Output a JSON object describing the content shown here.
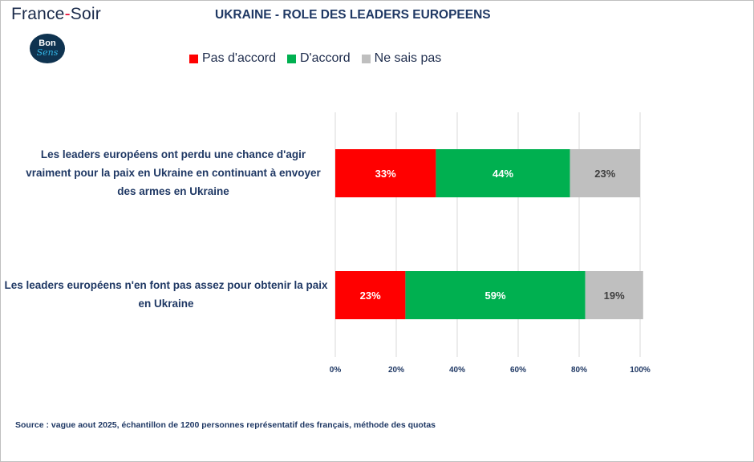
{
  "brand": {
    "left": "France",
    "dash": "-",
    "right": "Soir"
  },
  "logo": {
    "line1": "Bon",
    "line2": "Sens"
  },
  "colors": {
    "pas_daccord": "#ff0000",
    "daccord": "#00b050",
    "ne_sais_pas": "#bfbfbf",
    "text": "#1f3864"
  },
  "chart_data": {
    "type": "bar",
    "orientation": "horizontal",
    "stacked": true,
    "title": "UKRAINE - ROLE DES LEADERS EUROPEENS",
    "legend_position": "top",
    "categories": [
      "Les leaders européens ont perdu une chance d'agir vraiment pour la paix en Ukraine en continuant à envoyer des armes en Ukraine",
      "Les leaders européens n'en font pas assez pour obtenir la paix en Ukraine"
    ],
    "series": [
      {
        "name": "Pas d'accord",
        "color": "#ff0000",
        "values": [
          33,
          23
        ],
        "labels": [
          "33%",
          "23%"
        ]
      },
      {
        "name": "D'accord",
        "color": "#00b050",
        "values": [
          44,
          59
        ],
        "labels": [
          "44%",
          "59%"
        ]
      },
      {
        "name": "Ne sais pas",
        "color": "#bfbfbf",
        "values": [
          23,
          19
        ],
        "labels": [
          "23%",
          "19%"
        ]
      }
    ],
    "xlim": [
      0,
      100
    ],
    "xticks": [
      0,
      20,
      40,
      60,
      80,
      100
    ],
    "xtick_labels": [
      "0%",
      "20%",
      "40%",
      "60%",
      "80%",
      "100%"
    ],
    "grid": true
  },
  "source": "Source : vague aout 2025, échantillon de 1200 personnes représentatif des français, méthode des quotas"
}
